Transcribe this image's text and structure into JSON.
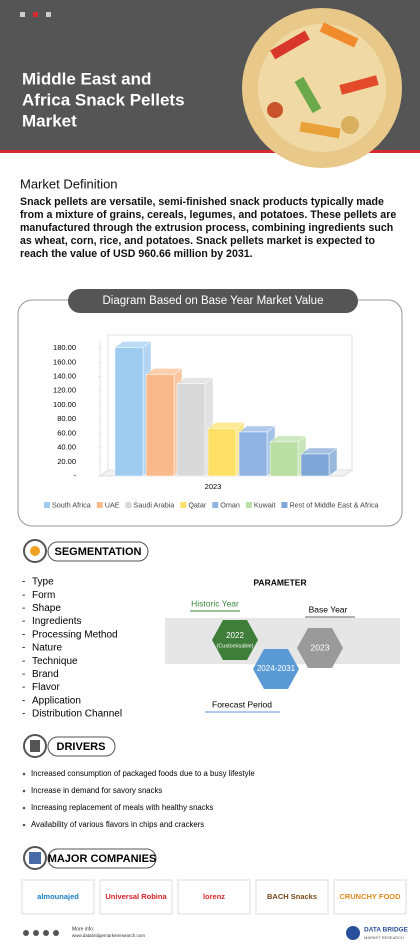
{
  "header": {
    "title_lines": [
      "Middle East and",
      "Africa Snack Pellets",
      "Market"
    ]
  },
  "definition": {
    "heading": "Market Definition",
    "text": "Snack pellets are versatile, semi-finished snack products typically made from a mixture of grains, cereals, legumes, and potatoes. These pellets are manufactured through the extrusion process, combining ingredients such as wheat, corn, rice, and potatoes. Snack pellets market is expected to reach the value of USD 960.66 million by 2031."
  },
  "chart_data": {
    "type": "bar",
    "title": "Diagram Based on Base Year Market Value",
    "x_label": "2023",
    "categories": [
      "South Africa",
      "UAE",
      "Saudi Arabia",
      "Qatar",
      "Oman",
      "Kuwait",
      "Rest of Middle East & Africa"
    ],
    "values": [
      181,
      143,
      130,
      67,
      62,
      48,
      31
    ],
    "colors": [
      "#9ecbf0",
      "#f9b98a",
      "#d9d9d9",
      "#ffe066",
      "#8fb4e3",
      "#b9dfa5",
      "#7ea6d6"
    ],
    "ylim": [
      0,
      190
    ],
    "yticks": [
      {
        "value": 0,
        "label": "-"
      },
      {
        "value": 20,
        "label": "20.00"
      },
      {
        "value": 40,
        "label": "40.00"
      },
      {
        "value": 60,
        "label": "60.00"
      },
      {
        "value": 80,
        "label": "80.00"
      },
      {
        "value": 100,
        "label": "100.00"
      },
      {
        "value": 120,
        "label": "120.00"
      },
      {
        "value": 140,
        "label": "140.00"
      },
      {
        "value": 160,
        "label": "160.00"
      },
      {
        "value": 180,
        "label": "180.00"
      }
    ],
    "grid": false,
    "legend": "bottom"
  },
  "segmentation": {
    "heading": "SEGMENTATION",
    "items": [
      "Type",
      "Form",
      "Shape",
      "Ingredients",
      "Processing Method",
      "Nature",
      "Technique",
      "Brand",
      "Flavor",
      "Application",
      "Distribution Channel"
    ],
    "parameter": {
      "title": "PARAMETER",
      "historic_label": "Historic Year",
      "historic_value": "2022",
      "historic_note": "(Customisable)",
      "forecast_value": "2024-2031",
      "forecast_label": "Forecast Period",
      "base_label": "Base Year",
      "base_value": "2023"
    }
  },
  "drivers": {
    "heading": "DRIVERS",
    "items": [
      "Increased consumption of packaged foods due to a busy lifestyle",
      "Increase in demand for savory snacks",
      "Increasing replacement of meals with healthy snacks",
      "Availability of various flavors in chips and crackers"
    ]
  },
  "companies": {
    "heading": "MAJOR COMPANIES",
    "logos": [
      "almounajed",
      "Universal Robina",
      "lorenz",
      "BACH Snacks",
      "CRUNCHY FOOD"
    ]
  },
  "footer": {
    "more_info": "More info:",
    "url": "www.databridgemarketresearch.com",
    "brand": "DATA BRIDGE",
    "brand_sub": "MARKET RESEARCH"
  }
}
